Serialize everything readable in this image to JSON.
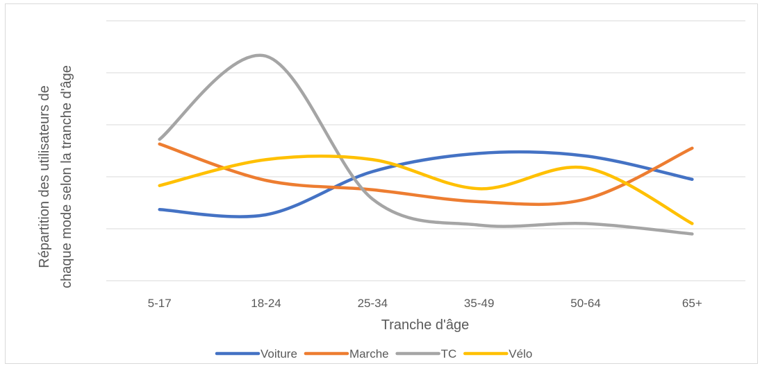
{
  "chart_data": {
    "type": "line",
    "title": "",
    "xlabel": "Tranche d'âge",
    "ylabel_lines": [
      "Répartition des utilisateurs de",
      "chaque mode selon la tranche d'âge"
    ],
    "categories": [
      "5-17",
      "18-24",
      "25-34",
      "35-49",
      "50-64",
      "65+"
    ],
    "ylim": [
      0,
      5
    ],
    "y_gridlines": [
      0,
      1,
      2,
      3,
      4,
      5
    ],
    "y_tick_labels_shown": false,
    "grid": true,
    "smooth": true,
    "legend_position": "bottom",
    "series": [
      {
        "name": "Voiture",
        "color": "#4472c4",
        "values": [
          1.37,
          1.27,
          2.1,
          2.45,
          2.4,
          1.95
        ]
      },
      {
        "name": "Marche",
        "color": "#ed7d31",
        "values": [
          2.63,
          1.93,
          1.75,
          1.52,
          1.57,
          2.55
        ]
      },
      {
        "name": "TC",
        "color": "#a5a5a5",
        "values": [
          2.72,
          4.32,
          1.57,
          1.07,
          1.1,
          0.9
        ]
      },
      {
        "name": "Vélo",
        "color": "#ffc000",
        "values": [
          1.83,
          2.33,
          2.33,
          1.77,
          2.17,
          1.1
        ]
      }
    ]
  }
}
